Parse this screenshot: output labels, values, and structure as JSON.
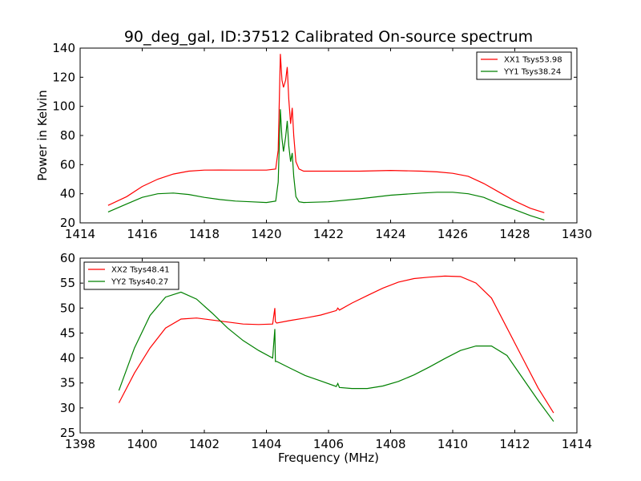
{
  "figure": {
    "title": "90_deg_gal, ID:37512 Calibrated On-source spectrum",
    "shared_xlabel": "Frequency (MHz)",
    "top_ylabel": "Power in Kelvin"
  },
  "colors": {
    "red": "#ff0000",
    "green": "#008000"
  },
  "chart_data": [
    {
      "type": "line",
      "title": "90_deg_gal, ID:37512 Calibrated On-source spectrum",
      "xlabel": "",
      "ylabel": "Power in Kelvin",
      "xlim": [
        1414,
        1430
      ],
      "ylim": [
        20,
        140
      ],
      "xticks": [
        1414,
        1416,
        1418,
        1420,
        1422,
        1424,
        1426,
        1428,
        1430
      ],
      "yticks": [
        20,
        40,
        60,
        80,
        100,
        120,
        140
      ],
      "grid": false,
      "legend_position": "top-right",
      "series": [
        {
          "name": "XX1 Tsys53.98",
          "color": "#ff0000",
          "x": [
            1414.9,
            1415.5,
            1416.0,
            1416.5,
            1417.0,
            1417.5,
            1418.0,
            1418.5,
            1419.0,
            1419.5,
            1420.0,
            1420.3,
            1420.38,
            1420.45,
            1420.5,
            1420.55,
            1420.62,
            1420.67,
            1420.72,
            1420.78,
            1420.83,
            1420.88,
            1420.95,
            1421.05,
            1421.2,
            1422.0,
            1423.0,
            1424.0,
            1425.0,
            1425.5,
            1426.0,
            1426.5,
            1427.0,
            1427.5,
            1428.0,
            1428.5,
            1428.95
          ],
          "y": [
            32,
            38,
            45,
            50,
            53.5,
            55.5,
            56.2,
            56.3,
            56.2,
            56.2,
            56.2,
            57,
            70,
            136,
            118,
            113,
            118,
            127,
            105,
            88,
            99,
            80,
            62,
            57,
            55.5,
            55.5,
            55.5,
            56,
            55.5,
            55,
            54,
            52,
            47,
            41,
            35,
            30,
            27
          ]
        },
        {
          "name": "YY1 Tsys38.24",
          "color": "#008000",
          "x": [
            1414.9,
            1415.5,
            1416.0,
            1416.5,
            1417.0,
            1417.5,
            1418.0,
            1418.5,
            1419.0,
            1419.5,
            1420.0,
            1420.3,
            1420.38,
            1420.45,
            1420.5,
            1420.55,
            1420.62,
            1420.67,
            1420.72,
            1420.78,
            1420.83,
            1420.88,
            1420.95,
            1421.05,
            1421.2,
            1422.0,
            1423.0,
            1424.0,
            1425.0,
            1425.5,
            1426.0,
            1426.5,
            1427.0,
            1427.5,
            1428.0,
            1428.5,
            1428.95
          ],
          "y": [
            27.5,
            33,
            37.5,
            40,
            40.5,
            39.5,
            37.5,
            36,
            35,
            34.5,
            34,
            35,
            48,
            98,
            78,
            69,
            79,
            90,
            73,
            62,
            68,
            52,
            38,
            34.5,
            34,
            34.5,
            36.5,
            39,
            40.5,
            41,
            41,
            40,
            37.5,
            33,
            29,
            25,
            22
          ]
        }
      ]
    },
    {
      "type": "line",
      "title": "",
      "xlabel": "Frequency (MHz)",
      "ylabel": "",
      "xlim": [
        1398,
        1414
      ],
      "ylim": [
        25,
        60
      ],
      "xticks": [
        1398,
        1400,
        1402,
        1404,
        1406,
        1408,
        1410,
        1412,
        1414
      ],
      "yticks": [
        25,
        30,
        35,
        40,
        45,
        50,
        55,
        60
      ],
      "grid": false,
      "legend_position": "top-left",
      "series": [
        {
          "name": "XX2 Tsys48.41",
          "color": "#ff0000",
          "x": [
            1399.25,
            1399.75,
            1400.25,
            1400.75,
            1401.25,
            1401.75,
            1402.25,
            1402.75,
            1403.25,
            1403.75,
            1404.2,
            1404.27,
            1404.29,
            1404.33,
            1404.75,
            1405.25,
            1405.75,
            1406.25,
            1406.3,
            1406.35,
            1406.75,
            1407.25,
            1407.75,
            1408.25,
            1408.75,
            1409.25,
            1409.75,
            1410.25,
            1410.75,
            1411.25,
            1411.75,
            1412.25,
            1412.75,
            1413.25
          ],
          "y": [
            31,
            37,
            42,
            46,
            47.8,
            48,
            47.6,
            47.2,
            46.8,
            46.7,
            46.8,
            50,
            47.3,
            47,
            47.5,
            48,
            48.6,
            49.5,
            50,
            49.6,
            51,
            52.5,
            54,
            55.2,
            55.9,
            56.2,
            56.4,
            56.3,
            55,
            52,
            46,
            40,
            34,
            29
          ]
        },
        {
          "name": "YY2 Tsys40.27",
          "color": "#008000",
          "x": [
            1399.25,
            1399.75,
            1400.25,
            1400.75,
            1401.25,
            1401.75,
            1402.25,
            1402.75,
            1403.25,
            1403.75,
            1404.2,
            1404.27,
            1404.29,
            1404.33,
            1404.75,
            1405.25,
            1405.75,
            1406.25,
            1406.3,
            1406.35,
            1406.75,
            1407.25,
            1407.75,
            1408.25,
            1408.75,
            1409.25,
            1409.75,
            1410.25,
            1410.75,
            1411.25,
            1411.75,
            1412.25,
            1412.75,
            1413.25
          ],
          "y": [
            33.5,
            42,
            48.5,
            52.2,
            53.2,
            51.8,
            49,
            46,
            43.5,
            41.5,
            40,
            45.8,
            39.3,
            39.3,
            38,
            36.5,
            35.4,
            34.3,
            34.9,
            34.1,
            33.9,
            33.9,
            34.4,
            35.3,
            36.6,
            38.2,
            39.9,
            41.5,
            42.4,
            42.4,
            40.5,
            36,
            31.5,
            27.3
          ]
        }
      ]
    }
  ]
}
